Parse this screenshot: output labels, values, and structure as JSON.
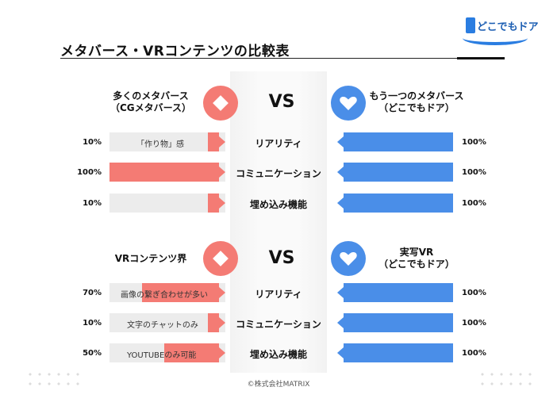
{
  "header": {
    "title": "メタバース・VRコンテンツの比較表",
    "logo_text": "どこでもドア"
  },
  "sections": [
    {
      "vs": "VS",
      "left_heading_line1": "多くのメタバース",
      "left_heading_line2": "（CGメタバース）",
      "right_heading_line1": "もう一つのメタバース",
      "right_heading_line2": "（どこでもドア）",
      "rows": [
        {
          "label": "リアリティ",
          "left_pct": "10%",
          "left_value": 0.1,
          "left_text": "「作り物」感",
          "right_pct": "100%",
          "right_value": 1.0
        },
        {
          "label": "コミュニケーション",
          "left_pct": "100%",
          "left_value": 1.0,
          "left_text": "",
          "right_pct": "100%",
          "right_value": 1.0
        },
        {
          "label": "埋め込み機能",
          "left_pct": "10%",
          "left_value": 0.1,
          "left_text": "",
          "right_pct": "100%",
          "right_value": 1.0
        }
      ]
    },
    {
      "vs": "VS",
      "left_heading_line1": "VRコンテンツ界",
      "left_heading_line2": "",
      "right_heading_line1": "実写VR",
      "right_heading_line2": "（どこでもドア）",
      "rows": [
        {
          "label": "リアリティ",
          "left_pct": "70%",
          "left_value": 0.7,
          "left_text": "画像の繋ぎ合わせが多い",
          "right_pct": "100%",
          "right_value": 1.0
        },
        {
          "label": "コミュニケーション",
          "left_pct": "10%",
          "left_value": 0.1,
          "left_text": "文字のチャットのみ",
          "right_pct": "100%",
          "right_value": 1.0
        },
        {
          "label": "埋め込み機能",
          "left_pct": "50%",
          "left_value": 0.5,
          "left_text": "YOUTUBEのみ可能",
          "right_pct": "100%",
          "right_value": 1.0
        }
      ]
    }
  ],
  "footer": {
    "copyright": "©株式会社MATRIX"
  },
  "colors": {
    "red": "#f47b74",
    "blue": "#4a8ee8"
  }
}
